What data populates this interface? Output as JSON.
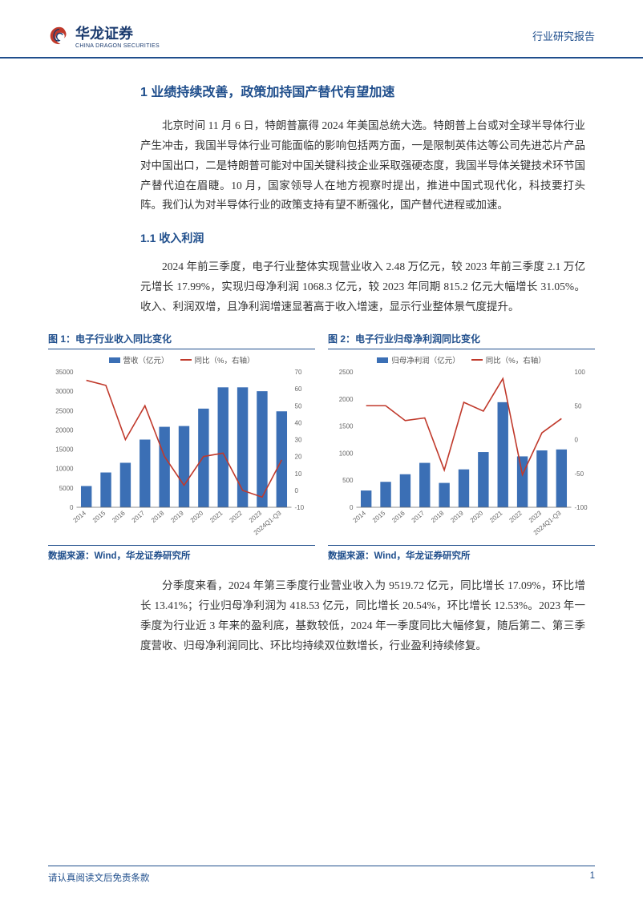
{
  "header": {
    "logo_cn": "华龙证券",
    "logo_en": "CHINA DRAGON SECURITIES",
    "right": "行业研究报告"
  },
  "section1": {
    "title": "1  业绩持续改善，政策加持国产替代有望加速",
    "para1": "北京时间 11 月 6 日，特朗普赢得 2024 年美国总统大选。特朗普上台或对全球半导体行业产生冲击，我国半导体行业可能面临的影响包括两方面，一是限制英伟达等公司先进芯片产品对中国出口，二是特朗普可能对中国关键科技企业采取强硬态度，我国半导体关键技术环节国产替代迫在眉睫。10 月，国家领导人在地方视察时提出，推进中国式现代化，科技要打头阵。我们认为对半导体行业的政策支持有望不断强化，国产替代进程或加速。",
    "sub_title": "1.1  收入利润",
    "para2": "2024 年前三季度，电子行业整体实现营业收入 2.48 万亿元，较 2023 年前三季度 2.1 万亿元增长 17.99%，实现归母净利润 1068.3 亿元，较 2023 年同期 815.2 亿元大幅增长 31.05%。收入、利润双增，且净利润增速显著高于收入增速，显示行业整体景气度提升。",
    "para3": "分季度来看，2024 年第三季度行业营业收入为 9519.72 亿元，同比增长 17.09%，环比增长 13.41%；行业归母净利润为 418.53 亿元，同比增长 20.54%，环比增长 12.53%。2023 年一季度为行业近 3 年来的盈利底，基数较低，2024 年一季度同比大幅修复，随后第二、第三季度营收、归母净利润同比、环比均持续双位数增长，行业盈利持续修复。"
  },
  "chart1": {
    "title": "图 1：电子行业收入同比变化",
    "source": "数据来源：Wind，华龙证券研究所",
    "type": "bar+line",
    "legend_bar": "营收（亿元）",
    "legend_line": "同比（%，右轴）",
    "categories": [
      "2014",
      "2015",
      "2016",
      "2017",
      "2018",
      "2019",
      "2020",
      "2021",
      "2022",
      "2023",
      "2024Q1-Q3"
    ],
    "bar_values": [
      5500,
      9000,
      11500,
      17500,
      20800,
      21000,
      25500,
      31000,
      31000,
      30000,
      24800
    ],
    "line_values": [
      65,
      62,
      30,
      50,
      20,
      3,
      20,
      22,
      0,
      -4,
      18
    ],
    "bar_color": "#3b6fb5",
    "line_color": "#c0392b",
    "y1_max": 35000,
    "y1_step": 5000,
    "y2_min": -10,
    "y2_max": 70,
    "y2_step": 10,
    "bg": "#ffffff",
    "axis_color": "#666666",
    "label_fontsize": 8
  },
  "chart2": {
    "title": "图 2：电子行业归母净利润同比变化",
    "source": "数据来源：Wind，华龙证券研究所",
    "type": "bar+line",
    "legend_bar": "归母净利润（亿元）",
    "legend_line": "同比（%，右轴）",
    "categories": [
      "2014",
      "2015",
      "2016",
      "2017",
      "2018",
      "2019",
      "2020",
      "2021",
      "2022",
      "2023",
      "2024Q1-Q3"
    ],
    "bar_values": [
      310,
      470,
      610,
      820,
      450,
      700,
      1020,
      1940,
      940,
      1050,
      1068
    ],
    "line_values": [
      50,
      50,
      28,
      32,
      -45,
      55,
      42,
      90,
      -52,
      10,
      31
    ],
    "bar_color": "#3b6fb5",
    "line_color": "#c0392b",
    "y1_max": 2500,
    "y1_step": 500,
    "y2_min": -100,
    "y2_max": 100,
    "y2_step": 50,
    "bg": "#ffffff",
    "axis_color": "#666666",
    "label_fontsize": 8
  },
  "footer": {
    "left": "请认真阅读文后免责条款",
    "page": "1"
  }
}
